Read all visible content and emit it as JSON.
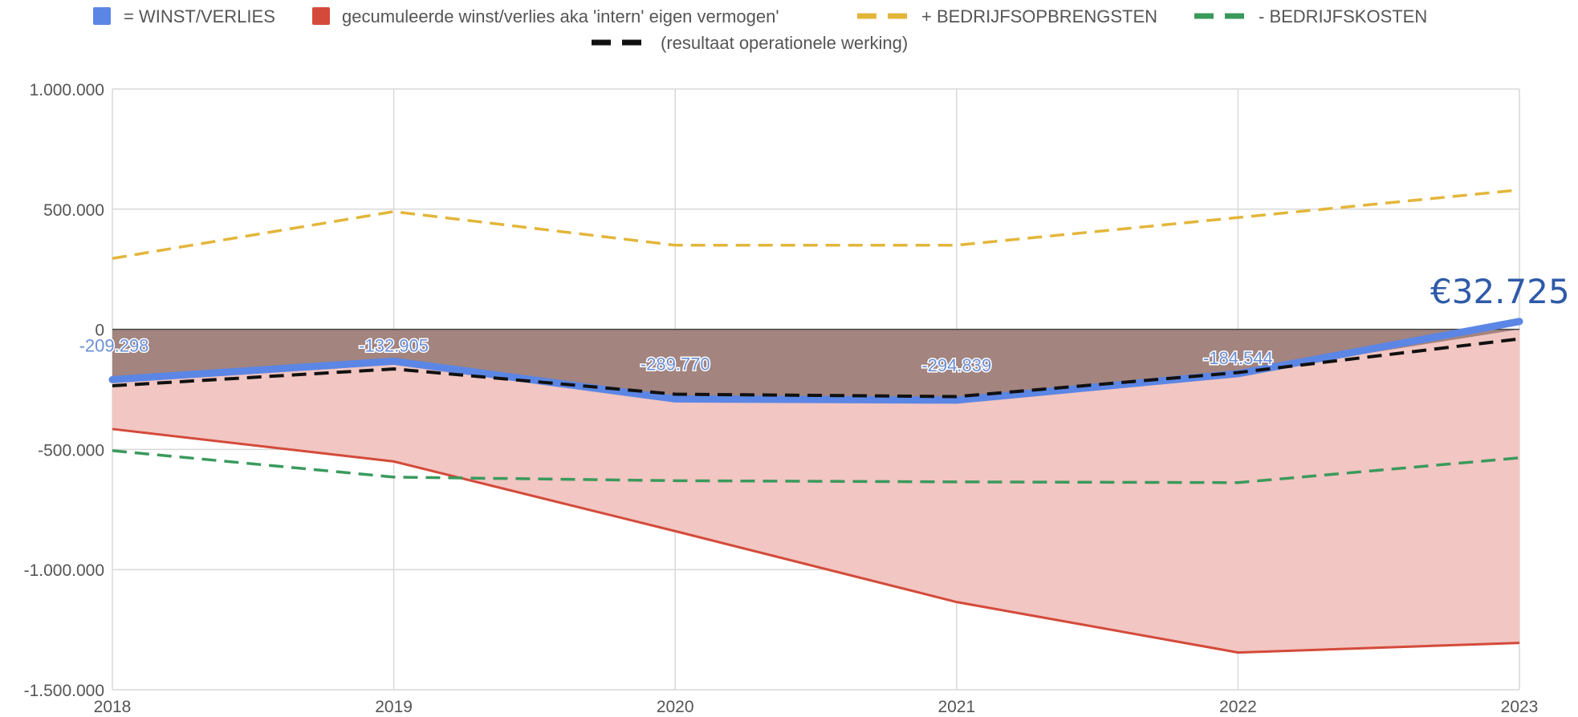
{
  "chart_data": {
    "type": "line",
    "x": [
      "2018",
      "2019",
      "2020",
      "2021",
      "2022",
      "2023"
    ],
    "ylim": [
      -1500000,
      1000000
    ],
    "y_ticks": [
      1000000,
      500000,
      0,
      -500000,
      -1000000,
      -1500000
    ],
    "y_tick_labels": [
      "1.000.000",
      "500.000",
      "0",
      "-500.000",
      "-1.000.000",
      "-1.500.000"
    ],
    "grid": true,
    "legend_position": "top",
    "series": [
      {
        "key": "winst",
        "name": "= WINST/VERLIES",
        "style": "solid-area",
        "color": "#5b86e5",
        "values": [
          -209298,
          -132905,
          -289770,
          -294839,
          -184544,
          32725
        ],
        "data_labels": [
          "-209.298",
          "-132.905",
          "-289.770",
          "-294.839",
          "-184.544",
          ""
        ]
      },
      {
        "key": "cumulative",
        "name": "gecumuleerde winst/verlies aka 'intern' eigen vermogen'",
        "style": "area",
        "color": "#d44a3a",
        "fill": "#f2c6c2",
        "values": [
          -415000,
          -550000,
          -840000,
          -1135000,
          -1345000,
          -1305000
        ]
      },
      {
        "key": "opbrengsten",
        "name": "+ BEDRIJFSOPBRENGSTEN",
        "style": "dashed",
        "color": "#e3b63a",
        "values": [
          295000,
          490000,
          350000,
          350000,
          465000,
          580000
        ]
      },
      {
        "key": "kosten",
        "name": "- BEDRIJFSKOSTEN",
        "style": "dashed",
        "color": "#3a9a5c",
        "values": [
          -505000,
          -615000,
          -630000,
          -635000,
          -638000,
          -535000
        ]
      },
      {
        "key": "resultaat",
        "name": "(resultaat operationele werking)",
        "style": "dashed",
        "color": "#111111",
        "values": [
          -235000,
          -165000,
          -270000,
          -280000,
          -180000,
          -40000
        ]
      }
    ],
    "annotation": "€32.725"
  },
  "colors": {
    "negative_band": "#a3847f",
    "grid": "#d9d9d9",
    "zero_line": "#444444"
  }
}
